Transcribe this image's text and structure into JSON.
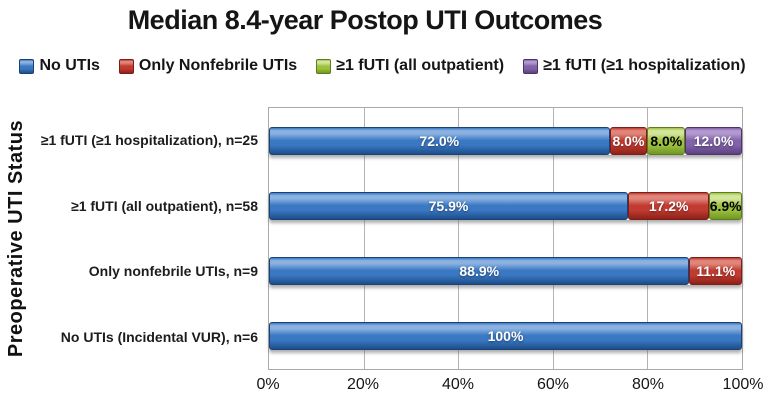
{
  "title": "Median 8.4-year Postop UTI Outcomes",
  "y_axis_title": "Preoperative UTI Status",
  "chart_data": {
    "type": "bar",
    "orientation": "horizontal-stacked",
    "title": "Median 8.4-year Postop UTI Outcomes",
    "ylabel": "Preoperative UTI Status",
    "xlabel": "",
    "xlim": [
      0,
      100
    ],
    "x_tick_labels": [
      "0%",
      "20%",
      "40%",
      "60%",
      "80%",
      "100%"
    ],
    "x_tick_values": [
      0,
      20,
      40,
      60,
      80,
      100
    ],
    "grid": "vertical",
    "legend_position": "top",
    "categories": [
      "≥1 fUTI (≥1 hospitalization), n=25",
      "≥1 fUTI (all outpatient), n=58",
      "Only nonfebrile UTIs, n=9",
      "No UTIs (Incidental VUR), n=6"
    ],
    "series": [
      {
        "name": "No UTIs",
        "values": [
          72.0,
          75.9,
          88.9,
          100
        ],
        "data_labels": [
          "72.0%",
          "75.9%",
          "88.9%",
          "100%"
        ],
        "color_base": "#3a78c3",
        "color_light": "#8ab1e0",
        "color_dark": "#1d4e8a",
        "color_edge": "#1b4275",
        "label_style": "light"
      },
      {
        "name": "Only Nonfebrile UTIs",
        "values": [
          8.0,
          17.2,
          11.1,
          0
        ],
        "data_labels": [
          "8.0%",
          "17.2%",
          "11.1%",
          ""
        ],
        "color_base": "#c23b31",
        "color_light": "#e0857a",
        "color_dark": "#8b2119",
        "color_edge": "#7c1d16",
        "label_style": "light"
      },
      {
        "name": "≥1 fUTI (all outpatient)",
        "values": [
          8.0,
          6.9,
          0,
          0
        ],
        "data_labels": [
          "8.0%",
          "6.9%",
          "",
          ""
        ],
        "color_base": "#9dc13f",
        "color_light": "#d3e59c",
        "color_dark": "#6f9722",
        "color_edge": "#5f7c1c",
        "label_style": "dark"
      },
      {
        "name": "≥1 fUTI (≥1 hospitalization)",
        "values": [
          12.0,
          0,
          0,
          0
        ],
        "data_labels": [
          "12.0%",
          "",
          "",
          ""
        ],
        "color_base": "#8263a9",
        "color_light": "#b299cf",
        "color_dark": "#5c4180",
        "color_edge": "#4c3468",
        "label_style": "light"
      }
    ]
  }
}
